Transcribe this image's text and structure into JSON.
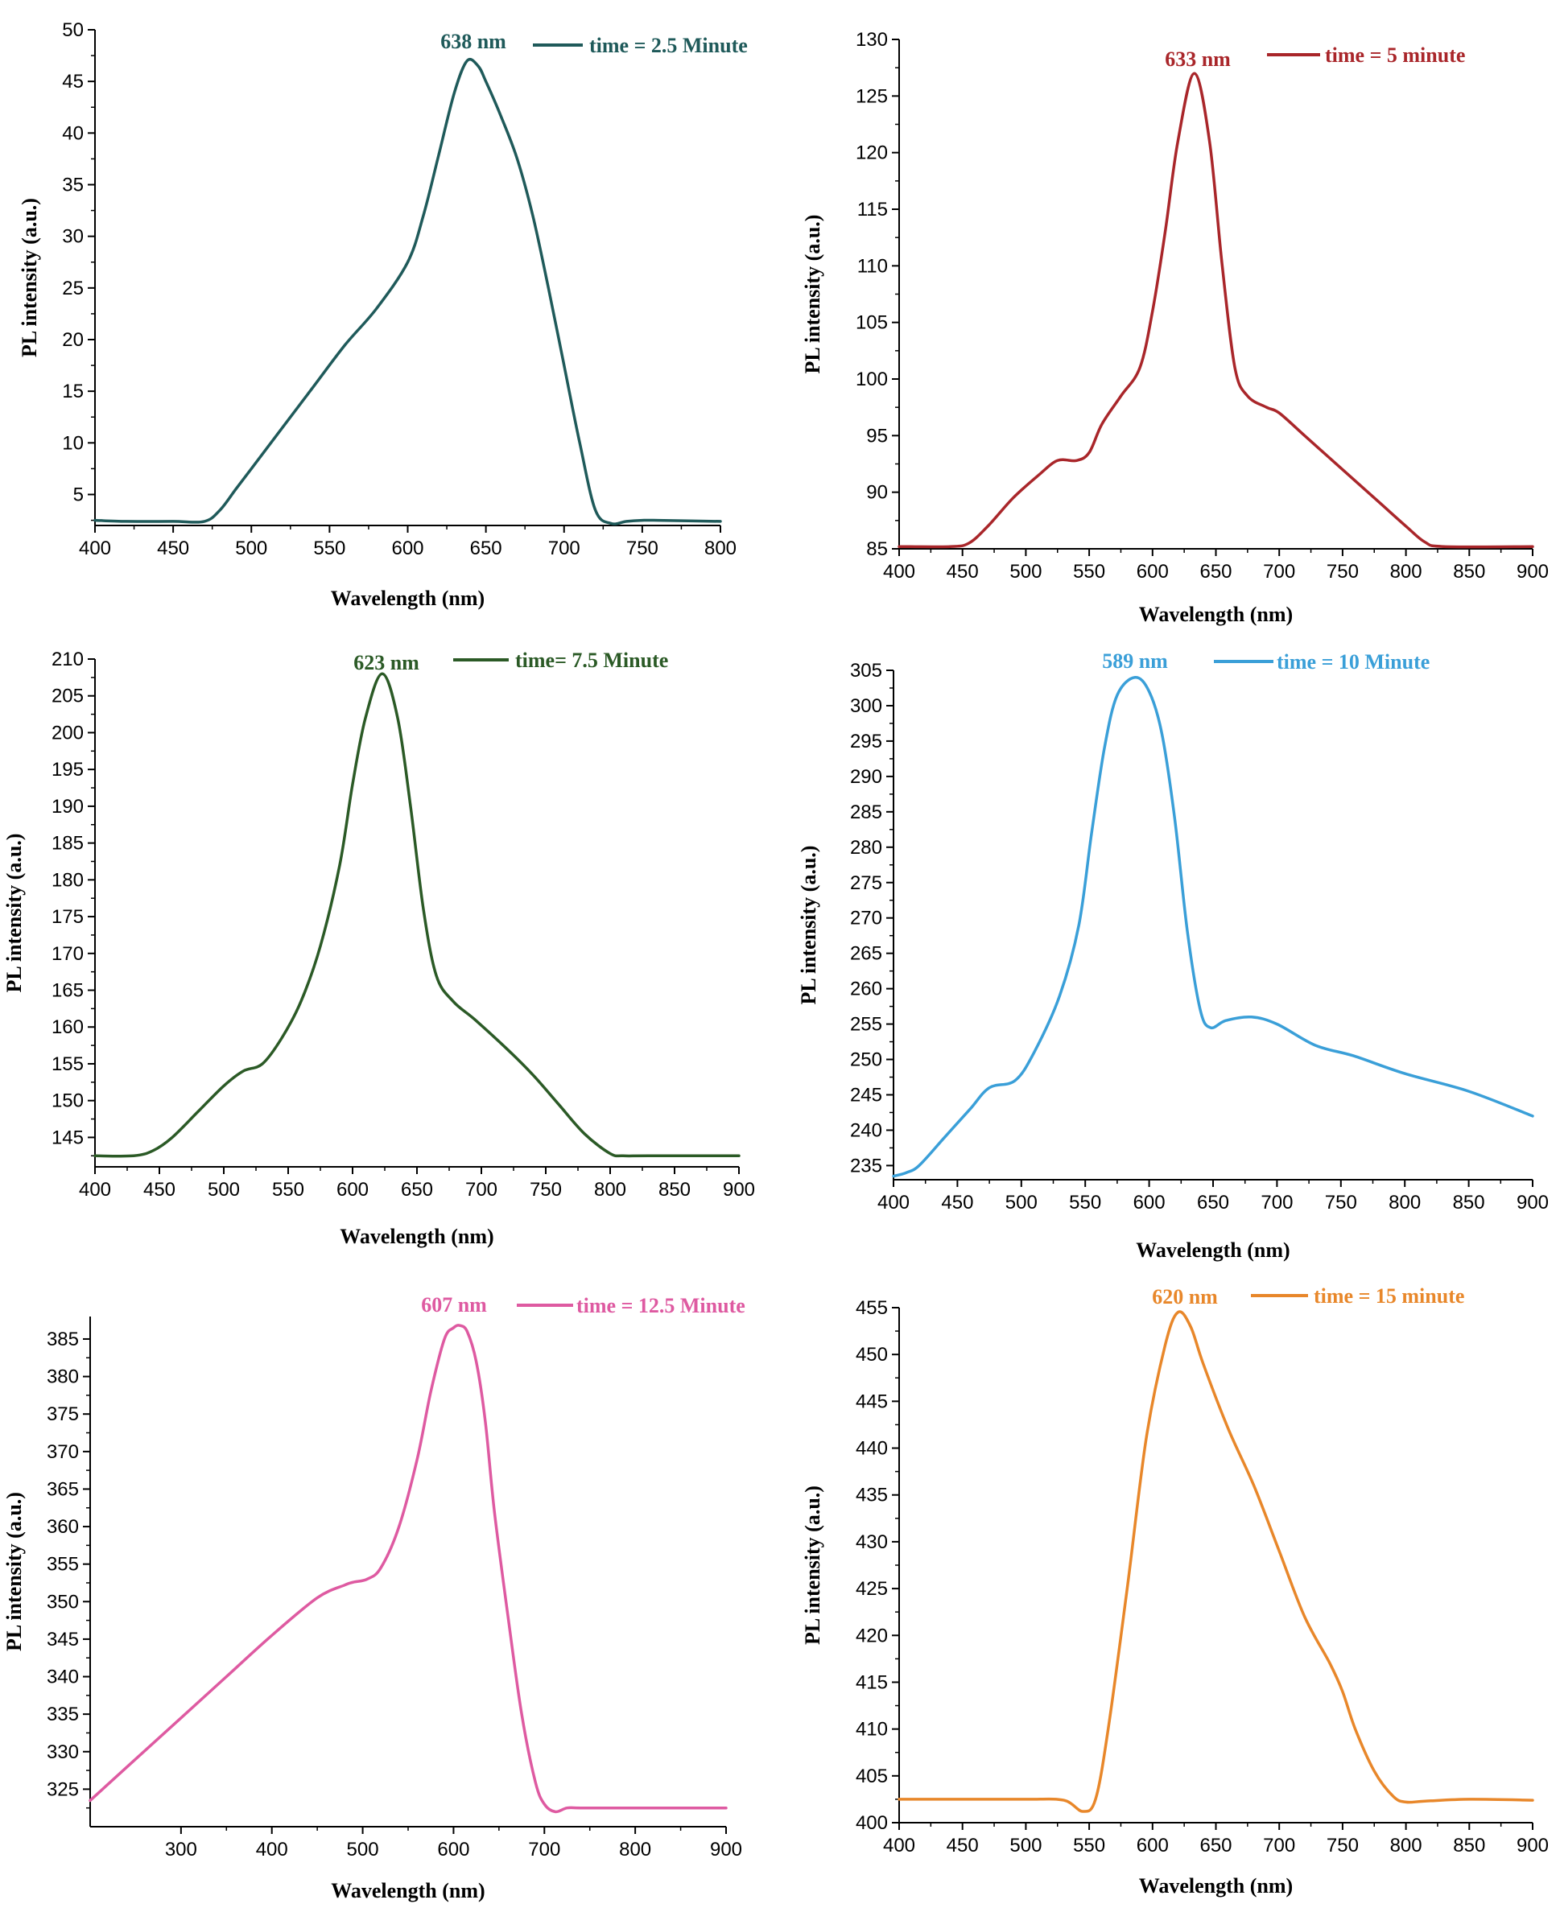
{
  "chart_data": [
    {
      "type": "line",
      "color": "#1f5a5a",
      "peak_label": "638 nm",
      "legend": "time = 2.5 Minute",
      "xlabel": "Wavelength (nm)",
      "ylabel": "PL intensity (a.u.)",
      "xlim": [
        400,
        800
      ],
      "ylim": [
        2,
        50
      ],
      "xticks": [
        400,
        450,
        500,
        550,
        600,
        650,
        700,
        750,
        800
      ],
      "yticks": [
        5,
        10,
        15,
        20,
        25,
        30,
        35,
        40,
        45,
        50
      ],
      "series": [
        {
          "x": [
            400,
            420,
            450,
            470,
            480,
            490,
            500,
            520,
            540,
            560,
            580,
            600,
            610,
            620,
            630,
            638,
            645,
            650,
            660,
            670,
            680,
            690,
            700,
            710,
            720,
            730,
            740,
            750,
            760,
            800
          ],
          "y": [
            2.5,
            2.4,
            2.4,
            2.4,
            3.5,
            5.5,
            7.5,
            11.5,
            15.5,
            19.5,
            23,
            27.5,
            32,
            38,
            44,
            47,
            46.5,
            45,
            41.5,
            37.5,
            32,
            25,
            17.5,
            10,
            3.5,
            2.2,
            2.4,
            2.5,
            2.5,
            2.4
          ]
        }
      ]
    },
    {
      "type": "line",
      "color": "#a9262a",
      "peak_label": "633 nm",
      "legend": "time = 5 minute",
      "xlabel": "Wavelength (nm)",
      "ylabel": "PL intensity (a.u.)",
      "xlim": [
        400,
        900
      ],
      "ylim": [
        85,
        130
      ],
      "xticks": [
        400,
        450,
        500,
        550,
        600,
        650,
        700,
        750,
        800,
        850,
        900
      ],
      "yticks": [
        85,
        90,
        95,
        100,
        105,
        110,
        115,
        120,
        125,
        130
      ],
      "series": [
        {
          "x": [
            400,
            440,
            455,
            470,
            490,
            510,
            525,
            540,
            550,
            560,
            575,
            590,
            600,
            610,
            620,
            633,
            645,
            655,
            665,
            675,
            690,
            700,
            720,
            740,
            760,
            780,
            800,
            815,
            830,
            900
          ],
          "y": [
            85.2,
            85.2,
            85.5,
            87,
            89.5,
            91.5,
            92.8,
            92.8,
            93.5,
            96,
            98.5,
            101,
            106,
            113,
            121,
            127,
            121,
            110,
            101,
            98.5,
            97.5,
            97,
            95,
            93,
            91,
            89,
            87,
            85.6,
            85.2,
            85.2
          ]
        }
      ]
    },
    {
      "type": "line",
      "color": "#2b5a26",
      "peak_label": "623 nm",
      "legend": "time= 7.5 Minute",
      "xlabel": "Wavelength (nm)",
      "ylabel": "PL intensity (a.u.)",
      "xlim": [
        400,
        900
      ],
      "ylim": [
        141,
        210
      ],
      "xticks": [
        400,
        450,
        500,
        550,
        600,
        650,
        700,
        750,
        800,
        850,
        900
      ],
      "yticks": [
        145,
        150,
        155,
        160,
        165,
        170,
        175,
        180,
        185,
        190,
        195,
        200,
        205,
        210
      ],
      "series": [
        {
          "x": [
            400,
            430,
            445,
            460,
            480,
            500,
            515,
            530,
            545,
            560,
            575,
            590,
            600,
            610,
            623,
            635,
            645,
            655,
            665,
            678,
            695,
            720,
            740,
            760,
            780,
            800,
            810,
            830,
            900
          ],
          "y": [
            142.5,
            142.5,
            143.2,
            145,
            148.5,
            152,
            154,
            155,
            158.5,
            163.5,
            171,
            182,
            193,
            202,
            208,
            202,
            190,
            176,
            167,
            163.5,
            161,
            157,
            153.5,
            149.5,
            145.5,
            142.8,
            142.5,
            142.5,
            142.5
          ]
        }
      ]
    },
    {
      "type": "line",
      "color": "#3a9fd8",
      "peak_label": "589 nm",
      "legend": "time = 10 Minute",
      "xlabel": "Wavelength (nm)",
      "ylabel": "PL intensity (a.u.)",
      "xlim": [
        400,
        900
      ],
      "ylim": [
        233,
        305
      ],
      "xticks": [
        400,
        450,
        500,
        550,
        600,
        650,
        700,
        750,
        800,
        850,
        900
      ],
      "yticks": [
        235,
        240,
        245,
        250,
        255,
        260,
        265,
        270,
        275,
        280,
        285,
        290,
        295,
        300,
        305
      ],
      "series": [
        {
          "x": [
            400,
            410,
            420,
            440,
            460,
            475,
            495,
            510,
            530,
            545,
            555,
            565,
            575,
            589,
            600,
            610,
            620,
            630,
            640,
            648,
            660,
            680,
            700,
            730,
            760,
            800,
            850,
            900
          ],
          "y": [
            233.5,
            234,
            235,
            239,
            243,
            246,
            247,
            251,
            259,
            269,
            282,
            294,
            301.5,
            304,
            302,
            296,
            284,
            268,
            257,
            254.5,
            255.5,
            256,
            255,
            252,
            250.5,
            248,
            245.5,
            242
          ]
        }
      ]
    },
    {
      "type": "line",
      "color": "#de5aa1",
      "peak_label": "607 nm",
      "legend": "time = 12.5 Minute",
      "xlabel": "Wavelength (nm)",
      "ylabel": "PL intensity (a.u.)",
      "xlim": [
        200,
        900
      ],
      "ylim": [
        320,
        388
      ],
      "xticks": [
        300,
        400,
        500,
        600,
        700,
        800,
        900
      ],
      "yticks": [
        325,
        330,
        335,
        340,
        345,
        350,
        355,
        360,
        365,
        370,
        375,
        380,
        385
      ],
      "series": [
        {
          "x": [
            200,
            250,
            300,
            350,
            400,
            450,
            480,
            490,
            505,
            520,
            540,
            560,
            575,
            590,
            600,
            607,
            615,
            625,
            635,
            645,
            660,
            675,
            690,
            700,
            712,
            725,
            740,
            800,
            900
          ],
          "y": [
            323.5,
            329,
            334.5,
            340,
            345.5,
            350.5,
            352.2,
            352.6,
            353,
            354.5,
            360,
            369,
            378,
            385,
            386.5,
            386.8,
            386,
            382,
            374,
            362,
            348,
            335,
            326,
            323,
            322,
            322.5,
            322.5,
            322.5,
            322.5
          ]
        }
      ]
    },
    {
      "type": "line",
      "color": "#e8872a",
      "peak_label": "620 nm",
      "legend": "time = 15 minute",
      "xlabel": "Wavelength (nm)",
      "ylabel": "PL intensity (a.u.)",
      "xlim": [
        400,
        900
      ],
      "ylim": [
        400,
        455
      ],
      "xticks": [
        400,
        450,
        500,
        550,
        600,
        650,
        700,
        750,
        800,
        850,
        900
      ],
      "yticks": [
        400,
        405,
        410,
        415,
        420,
        425,
        430,
        435,
        440,
        445,
        450,
        455
      ],
      "series": [
        {
          "x": [
            400,
            450,
            500,
            530,
            545,
            555,
            565,
            580,
            595,
            610,
            620,
            630,
            640,
            660,
            680,
            700,
            720,
            740,
            750,
            760,
            775,
            790,
            800,
            815,
            850,
            900
          ],
          "y": [
            402.5,
            402.5,
            402.5,
            402.4,
            401.2,
            402.5,
            410,
            425,
            441,
            451,
            454.5,
            453,
            449,
            442,
            436,
            429,
            422,
            417,
            414,
            410,
            405.5,
            402.8,
            402.2,
            402.3,
            402.5,
            402.4
          ]
        }
      ]
    }
  ]
}
